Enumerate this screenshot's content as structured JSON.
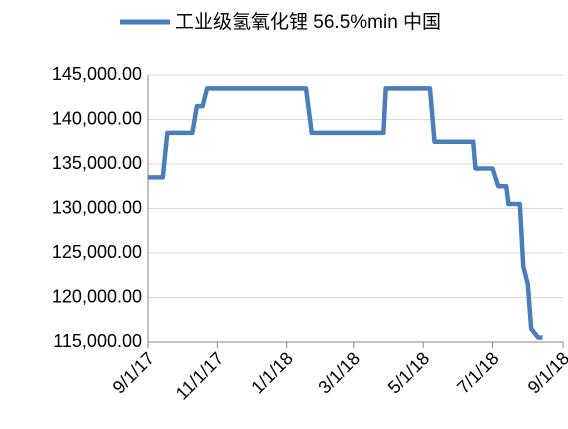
{
  "chart_data": {
    "type": "line",
    "xlim": [
      "2017-09-01",
      "2018-09-01"
    ],
    "xticks": [
      {
        "value": "2017-09-01",
        "label": "9/1/17"
      },
      {
        "value": "2017-11-01",
        "label": "11/1/17"
      },
      {
        "value": "2018-01-01",
        "label": "1/1/18"
      },
      {
        "value": "2018-03-01",
        "label": "3/1/18"
      },
      {
        "value": "2018-05-01",
        "label": "5/1/18"
      },
      {
        "value": "2018-07-01",
        "label": "7/1/18"
      },
      {
        "value": "2018-09-01",
        "label": "9/1/18"
      }
    ],
    "ylim": [
      115000,
      145000
    ],
    "yticks": [
      {
        "value": 115000,
        "label": "115,000.00"
      },
      {
        "value": 120000,
        "label": "120,000.00"
      },
      {
        "value": 125000,
        "label": "125,000.00"
      },
      {
        "value": 130000,
        "label": "130,000.00"
      },
      {
        "value": 135000,
        "label": "135,000.00"
      },
      {
        "value": 140000,
        "label": "140,000.00"
      },
      {
        "value": 145000,
        "label": "145,000.00"
      }
    ],
    "grid": true,
    "legend": "top",
    "series": [
      {
        "name": "工业级氢氧化锂 56.5%min 中国",
        "color": "#4a7ebb",
        "x": [
          "2017-09-01",
          "2017-09-14",
          "2017-09-18",
          "2017-10-10",
          "2017-10-14",
          "2017-10-19",
          "2017-10-23",
          "2018-01-18",
          "2018-01-23",
          "2018-03-27",
          "2018-03-29",
          "2018-05-07",
          "2018-05-11",
          "2018-06-14",
          "2018-06-16",
          "2018-07-01",
          "2018-07-06",
          "2018-07-13",
          "2018-07-15",
          "2018-07-25",
          "2018-07-28",
          "2018-08-01",
          "2018-08-04",
          "2018-08-10",
          "2018-08-14"
        ],
        "values": [
          133500,
          133500,
          138500,
          138500,
          141500,
          141500,
          143500,
          143500,
          138500,
          138500,
          143500,
          143500,
          137500,
          137500,
          134500,
          134500,
          132500,
          132500,
          130500,
          130500,
          123500,
          121500,
          116500,
          115500,
          115500
        ]
      }
    ]
  }
}
